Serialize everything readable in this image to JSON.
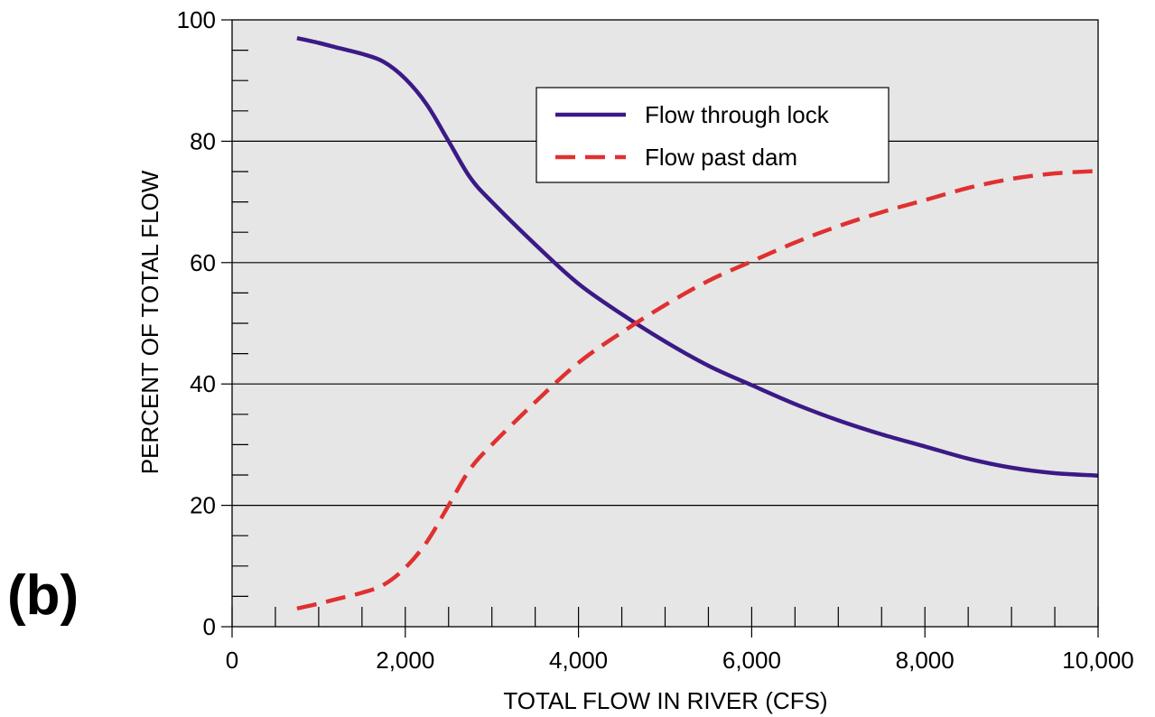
{
  "panel_label": "(b)",
  "chart_data": {
    "type": "line",
    "xlabel": "TOTAL FLOW IN RIVER (CFS)",
    "ylabel": "PERCENT OF TOTAL FLOW",
    "xlim": [
      0,
      10000
    ],
    "ylim": [
      0,
      100
    ],
    "x_ticks": [
      0,
      2000,
      4000,
      6000,
      8000,
      10000
    ],
    "x_tick_labels": [
      "0",
      "2,000",
      "4,000",
      "6,000",
      "8,000",
      "10,000"
    ],
    "y_ticks": [
      0,
      20,
      40,
      60,
      80,
      100
    ],
    "y_tick_labels": [
      "0",
      "20",
      "40",
      "60",
      "80",
      "100"
    ],
    "grid": "horizontal at major y ticks",
    "background": "#e6e6e6",
    "legend_position": "upper-center",
    "series": [
      {
        "name": "Flow through lock",
        "color": "#3b1a86",
        "style": "solid",
        "x": [
          750,
          1000,
          1250,
          1500,
          1750,
          2000,
          2250,
          2500,
          2750,
          3000,
          3500,
          4000,
          4500,
          5000,
          5500,
          6000,
          6500,
          7000,
          7500,
          8000,
          8500,
          9000,
          9500,
          10000
        ],
        "y": [
          97,
          96.2,
          95.3,
          94.4,
          93.1,
          90.3,
          86,
          80,
          74,
          70,
          63,
          56.5,
          51.5,
          47,
          43,
          39.8,
          36.7,
          34,
          31.7,
          29.7,
          27.7,
          26.2,
          25.3,
          24.9
        ]
      },
      {
        "name": "Flow past dam",
        "color": "#e03030",
        "style": "dashed",
        "x": [
          750,
          1000,
          1250,
          1500,
          1750,
          2000,
          2250,
          2500,
          2750,
          3000,
          3500,
          4000,
          4500,
          5000,
          5500,
          6000,
          6500,
          7000,
          7500,
          8000,
          8500,
          9000,
          9500,
          10000
        ],
        "y": [
          3,
          3.8,
          4.7,
          5.6,
          6.9,
          9.7,
          14,
          20,
          26,
          30,
          37,
          43.5,
          48.5,
          53,
          57,
          60.2,
          63.3,
          66,
          68.3,
          70.3,
          72.3,
          73.8,
          74.7,
          75.1
        ]
      }
    ]
  }
}
